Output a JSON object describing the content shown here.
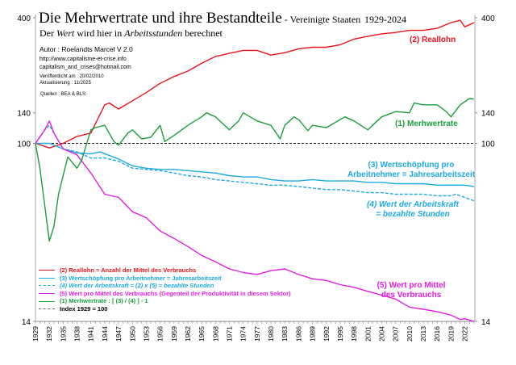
{
  "header": {
    "title": "Die Mehrwertrate und ihre Bestandteile",
    "title_suffix": " - ",
    "region": "Vereinigte Staaten",
    "period": "1929-2024",
    "subtitle_pre": "Der ",
    "subtitle_em1": "Wert",
    "subtitle_mid": " wird hier in ",
    "subtitle_em2": "Arbeitsstunden",
    "subtitle_post": " berechnet"
  },
  "info": {
    "author": "Autor : Roelandts Marcel  V 2.0",
    "url": "http://www.capitalisme-et-crise.info",
    "email": "capitalism_and_crises@hotmail.com",
    "published": "Veröffentlicht am : 20/02/2010",
    "updated": "Aktualisierung : 11/2025",
    "sources": "Quellen : BEA & BLS"
  },
  "chart_data": {
    "type": "line",
    "title": "Die Mehrwertrate und ihre Bestandteile - Vereinigte Staaten 1929-2024",
    "yscale": "log",
    "ylim": [
      14,
      400
    ],
    "xlim": [
      1929,
      2024
    ],
    "yticks": [
      14,
      100,
      140,
      400
    ],
    "xtick_step": 3,
    "reference_line": {
      "value": 100,
      "label": "Index 1929 = 100",
      "color": "#000000",
      "style": "dashed"
    },
    "grid": false,
    "legend_placement": "bottom-left",
    "series": [
      {
        "id": "reallohn",
        "name": "(2)  Reallohn = Anzahl der Mittel des Verbrauchs",
        "label": [
          "(2) Reallohn"
        ],
        "color": "#e8141b",
        "style": "solid",
        "x": [
          1929,
          1932,
          1935,
          1938,
          1941,
          1944,
          1945,
          1947,
          1950,
          1953,
          1956,
          1959,
          1962,
          1965,
          1968,
          1971,
          1974,
          1977,
          1980,
          1983,
          1986,
          1989,
          1992,
          1995,
          1998,
          2001,
          2004,
          2007,
          2010,
          2013,
          2016,
          2019,
          2021,
          2022,
          2024
        ],
        "y": [
          100,
          95,
          100,
          108,
          112,
          153,
          156,
          146,
          160,
          175,
          194,
          209,
          222,
          242,
          261,
          270,
          279,
          279,
          265,
          272,
          284,
          289,
          289,
          297,
          316,
          326,
          335,
          340,
          348,
          348,
          356,
          379,
          389,
          362,
          379
        ]
      },
      {
        "id": "wertschoepfung",
        "name": "(3)  Wertschöpfung pro Arbeitnehmer = Jahresarbeitszeit",
        "label": [
          "(3) Wertschöpfung pro",
          "Arbeitnehmer = Jahresarbeitszeit"
        ],
        "color": "#1ea9e1",
        "style": "solid",
        "x": [
          1929,
          1932,
          1935,
          1938,
          1941,
          1943,
          1947,
          1950,
          1953,
          1956,
          1959,
          1962,
          1965,
          1968,
          1971,
          1974,
          1977,
          1980,
          1983,
          1986,
          1989,
          1992,
          1995,
          1998,
          2001,
          2004,
          2007,
          2010,
          2013,
          2016,
          2019,
          2022,
          2024
        ],
        "y": [
          100,
          100,
          94,
          90,
          89,
          91,
          84,
          78,
          76,
          75,
          75,
          74,
          73,
          72,
          70,
          69,
          69,
          67,
          66,
          66,
          67,
          66,
          66,
          66,
          65,
          65,
          64,
          64,
          64,
          63,
          63,
          63,
          62
        ]
      },
      {
        "id": "arbeitskraft",
        "name": "(4)  Wert der Arbeitskraft = (2) x (5) = bezahlte Stunden",
        "label": [
          "(4) Wert der Arbeitskraft",
          "= bezahlte Stunden"
        ],
        "color": "#1ea9e1",
        "style": "dashed",
        "x": [
          1929,
          1931,
          1932,
          1935,
          1938,
          1941,
          1944,
          1947,
          1950,
          1953,
          1956,
          1959,
          1962,
          1965,
          1968,
          1971,
          1974,
          1977,
          1980,
          1983,
          1986,
          1989,
          1992,
          1995,
          1998,
          2001,
          2004,
          2007,
          2010,
          2013,
          2016,
          2019,
          2020,
          2022,
          2024
        ],
        "y": [
          100,
          116,
          122,
          94,
          91,
          85,
          85,
          82,
          76,
          75,
          74,
          72,
          70,
          69,
          67,
          66,
          65,
          64,
          63,
          63,
          62,
          61,
          60,
          60,
          59,
          58,
          58,
          57,
          57,
          57,
          56,
          56,
          57,
          55,
          53
        ]
      },
      {
        "id": "wert_mittel",
        "name": "(5)  Wert pro Mittel des Verbrauchs (Gegenteil der Produktivität in diesem Sektor)",
        "label": [
          "(5) Wert pro Mittel",
          "des Verbrauchs"
        ],
        "color": "#e21ee2",
        "style": "solid",
        "x": [
          1929,
          1931,
          1932,
          1933,
          1935,
          1938,
          1941,
          1944,
          1947,
          1950,
          1953,
          1956,
          1959,
          1962,
          1965,
          1968,
          1971,
          1974,
          1977,
          1980,
          1983,
          1986,
          1989,
          1992,
          1995,
          1998,
          2001,
          2004,
          2007,
          2010,
          2013,
          2016,
          2019,
          2021,
          2022,
          2024
        ],
        "y": [
          100,
          116,
          128,
          112,
          94,
          88,
          72,
          57,
          55,
          47,
          44,
          38,
          35,
          32,
          29,
          27,
          25,
          24,
          23.5,
          24.5,
          25,
          23.5,
          22.4,
          22,
          21,
          20.4,
          19.5,
          18.7,
          17.9,
          16.4,
          16,
          15.6,
          15,
          14.3,
          14.4,
          14
        ]
      },
      {
        "id": "mehrwertrate",
        "name": "(1)  Merhwertrate : [ (3) / (4) ] - 1",
        "label": [
          "(1) Merhwertrate"
        ],
        "color": "#1a9e3c",
        "style": "solid",
        "x": [
          1929,
          1930,
          1932,
          1933,
          1934,
          1936,
          1938,
          1939,
          1941,
          1942,
          1944,
          1946,
          1947,
          1949,
          1950,
          1952,
          1954,
          1956,
          1957,
          1959,
          1962,
          1965,
          1966,
          1968,
          1971,
          1973,
          1974,
          1977,
          1980,
          1982,
          1983,
          1985,
          1986,
          1988,
          1989,
          1992,
          1995,
          1996,
          1998,
          2001,
          2002,
          2004,
          2007,
          2010,
          2011,
          2013,
          2016,
          2018,
          2019,
          2021,
          2023,
          2024
        ],
        "y": [
          100,
          75,
          34,
          40,
          57,
          86,
          76,
          83,
          116,
          119,
          122,
          102,
          98,
          112,
          116,
          105,
          107,
          122,
          102,
          109,
          122,
          134,
          140,
          134,
          116,
          128,
          140,
          128,
          122,
          105,
          122,
          134,
          130,
          115,
          122,
          119,
          130,
          134,
          128,
          116,
          122,
          134,
          142,
          140,
          156,
          153,
          153,
          142,
          134,
          153,
          164,
          163
        ]
      }
    ]
  }
}
